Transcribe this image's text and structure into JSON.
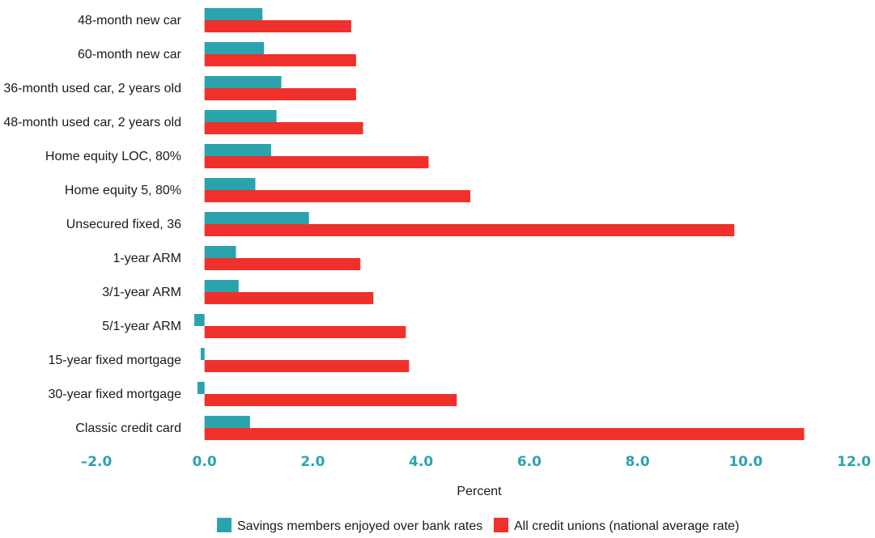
{
  "chart_data": {
    "type": "bar",
    "orientation": "horizontal",
    "categories": [
      "48-month new car",
      "60-month new car",
      "36-month used car, 2 years old",
      "48-month used car, 2 years old",
      "Home equity LOC, 80%",
      "Home equity 5, 80%",
      "Unsecured fixed, 36",
      "1-year ARM",
      "3/1-year ARM",
      "5/1-year ARM",
      "15-year fixed mortgage",
      "30-year fixed mortgage",
      "Classic credit card"
    ],
    "series": [
      {
        "name": "Savings members enjoyed over bank rates",
        "color": "#2ba3ad",
        "values": [
          1.07,
          1.1,
          1.42,
          1.33,
          1.23,
          0.94,
          1.93,
          0.58,
          0.63,
          -0.19,
          -0.07,
          -0.13,
          0.84
        ]
      },
      {
        "name": "All credit unions (national average rate)",
        "color": "#f0302a",
        "values": [
          2.71,
          2.8,
          2.8,
          2.93,
          4.14,
          4.91,
          9.79,
          2.88,
          3.12,
          3.72,
          3.78,
          4.66,
          11.08
        ]
      }
    ],
    "xlim": [
      -2.0,
      12.0
    ],
    "xticks": [
      "-2.0",
      "0.0",
      "2.0",
      "4.0",
      "6.0",
      "8.0",
      "10.0",
      "12.0"
    ],
    "xlabel": "Percent",
    "ylabel": "",
    "title": "",
    "grid": false,
    "legend_position": "bottom"
  }
}
